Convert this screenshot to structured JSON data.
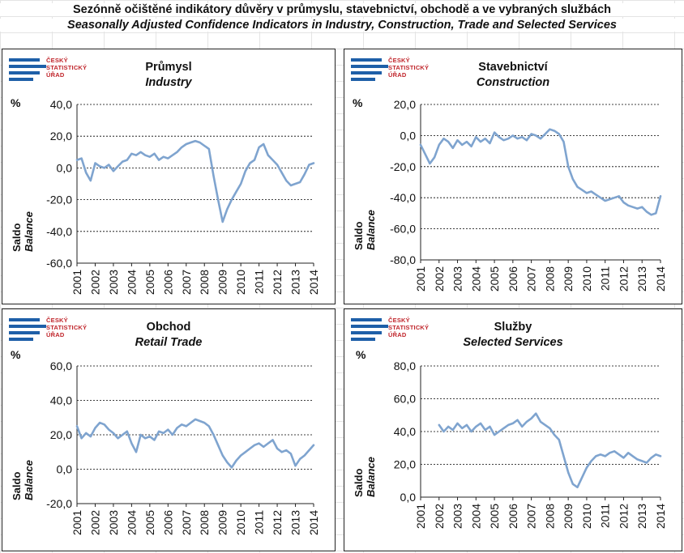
{
  "page": {
    "title_cz": "Sezónně očištěné indikátory důvěry v průmyslu, stavebnictví, obchodě a ve vybraných službách",
    "title_en": "Seasonally Adjusted Confidence Indicators in Industry, Construction, Trade and Selected Services"
  },
  "logo": {
    "line1": "ČESKÝ",
    "line2": "STATISTICKÝ",
    "line3": "ÚŘAD"
  },
  "colors": {
    "line": "#7fa4cf",
    "axis": "#222222",
    "grid": "#000000"
  },
  "chart_data": [
    {
      "type": "line",
      "title": "Průmysl",
      "subtitle": "Industry",
      "unit": "%",
      "ylabel": "Saldo",
      "ylabel_en": "Balance",
      "ylim": [
        -60,
        40
      ],
      "yticks": [
        "-60,0",
        "-40,0",
        "-20,0",
        "0,0",
        "20,0",
        "40,0"
      ],
      "xticks": [
        "2001",
        "2002",
        "2003",
        "2004",
        "2005",
        "2006",
        "2007",
        "2008",
        "2009",
        "2010",
        "2011",
        "2012",
        "2013",
        "2014"
      ],
      "grid": "horizontal dashed",
      "series": [
        {
          "x": [
            2001.0,
            2001.25,
            2001.5,
            2001.75,
            2002.0,
            2002.25,
            2002.5,
            2002.75,
            2003.0,
            2003.25,
            2003.5,
            2003.75,
            2004.0,
            2004.25,
            2004.5,
            2004.75,
            2005.0,
            2005.25,
            2005.5,
            2005.75,
            2006.0,
            2006.25,
            2006.5,
            2006.75,
            2007.0,
            2007.25,
            2007.5,
            2007.75,
            2008.0,
            2008.25,
            2008.5,
            2008.75,
            2009.0,
            2009.25,
            2009.5,
            2009.75,
            2010.0,
            2010.25,
            2010.5,
            2010.75,
            2011.0,
            2011.25,
            2011.5,
            2011.75,
            2012.0,
            2012.25,
            2012.5,
            2012.75,
            2013.0,
            2013.25,
            2013.5,
            2013.75,
            2014.0
          ],
          "values": [
            5,
            6,
            -3,
            -8,
            3,
            1,
            0,
            2,
            -2,
            1,
            4,
            5,
            9,
            8,
            10,
            8,
            7,
            9,
            5,
            7,
            6,
            8,
            10,
            13,
            15,
            16,
            17,
            16,
            14,
            12,
            -5,
            -20,
            -34,
            -26,
            -20,
            -15,
            -10,
            -2,
            3,
            5,
            13,
            15,
            8,
            5,
            2,
            -3,
            -8,
            -11,
            -10,
            -9,
            -4,
            2,
            3
          ]
        }
      ]
    },
    {
      "type": "line",
      "title": "Stavebnictví",
      "subtitle": "Construction",
      "unit": "%",
      "ylabel": "Saldo",
      "ylabel_en": "Balance",
      "ylim": [
        -80,
        20
      ],
      "yticks": [
        "-80,0",
        "-60,0",
        "-40,0",
        "-20,0",
        "0,0",
        "20,0"
      ],
      "xticks": [
        "2001",
        "2002",
        "2003",
        "2004",
        "2005",
        "2006",
        "2007",
        "2008",
        "2009",
        "2010",
        "2011",
        "2012",
        "2013",
        "2014"
      ],
      "grid": "horizontal dashed",
      "series": [
        {
          "x": [
            2001.0,
            2001.25,
            2001.5,
            2001.75,
            2002.0,
            2002.25,
            2002.5,
            2002.75,
            2003.0,
            2003.25,
            2003.5,
            2003.75,
            2004.0,
            2004.25,
            2004.5,
            2004.75,
            2005.0,
            2005.25,
            2005.5,
            2005.75,
            2006.0,
            2006.25,
            2006.5,
            2006.75,
            2007.0,
            2007.25,
            2007.5,
            2007.75,
            2008.0,
            2008.25,
            2008.5,
            2008.75,
            2009.0,
            2009.25,
            2009.5,
            2009.75,
            2010.0,
            2010.25,
            2010.5,
            2010.75,
            2011.0,
            2011.25,
            2011.5,
            2011.75,
            2012.0,
            2012.25,
            2012.5,
            2012.75,
            2013.0,
            2013.25,
            2013.5,
            2013.75,
            2014.0
          ],
          "values": [
            -6,
            -12,
            -18,
            -14,
            -6,
            -2,
            -4,
            -8,
            -3,
            -6,
            -4,
            -7,
            -1,
            -4,
            -2,
            -5,
            2,
            -1,
            -3,
            -2,
            0,
            -2,
            -1,
            -3,
            1,
            0,
            -2,
            1,
            4,
            3,
            1,
            -4,
            -20,
            -28,
            -33,
            -35,
            -37,
            -36,
            -38,
            -40,
            -42,
            -41,
            -40,
            -39,
            -43,
            -45,
            -46,
            -47,
            -46,
            -49,
            -51,
            -50,
            -39
          ]
        }
      ]
    },
    {
      "type": "line",
      "title": "Obchod",
      "subtitle": "Retail Trade",
      "unit": "%",
      "ylabel": "Saldo",
      "ylabel_en": "Balance",
      "ylim": [
        -20,
        60
      ],
      "yticks": [
        "-20,0",
        "0,0",
        "20,0",
        "40,0",
        "60,0"
      ],
      "xticks": [
        "2001",
        "2002",
        "2003",
        "2004",
        "2005",
        "2006",
        "2007",
        "2008",
        "2009",
        "2010",
        "2011",
        "2012",
        "2013",
        "2014"
      ],
      "grid": "horizontal dashed",
      "series": [
        {
          "x": [
            2001.0,
            2001.25,
            2001.5,
            2001.75,
            2002.0,
            2002.25,
            2002.5,
            2002.75,
            2003.0,
            2003.25,
            2003.5,
            2003.75,
            2004.0,
            2004.25,
            2004.5,
            2004.75,
            2005.0,
            2005.25,
            2005.5,
            2005.75,
            2006.0,
            2006.25,
            2006.5,
            2006.75,
            2007.0,
            2007.25,
            2007.5,
            2007.75,
            2008.0,
            2008.25,
            2008.5,
            2008.75,
            2009.0,
            2009.25,
            2009.5,
            2009.75,
            2010.0,
            2010.25,
            2010.5,
            2010.75,
            2011.0,
            2011.25,
            2011.5,
            2011.75,
            2012.0,
            2012.25,
            2012.5,
            2012.75,
            2013.0,
            2013.25,
            2013.5,
            2013.75,
            2014.0
          ],
          "values": [
            25,
            18,
            21,
            19,
            24,
            27,
            26,
            23,
            21,
            18,
            20,
            22,
            15,
            10,
            20,
            18,
            19,
            17,
            22,
            21,
            23,
            20,
            24,
            26,
            25,
            27,
            29,
            28,
            27,
            25,
            20,
            14,
            8,
            4,
            1,
            5,
            8,
            10,
            12,
            14,
            15,
            13,
            15,
            17,
            12,
            10,
            11,
            9,
            2,
            6,
            8,
            11,
            14
          ]
        }
      ]
    },
    {
      "type": "line",
      "title": "Služby",
      "subtitle": "Selected Services",
      "unit": "%",
      "ylabel": "Saldo",
      "ylabel_en": "Balance",
      "ylim": [
        0,
        80
      ],
      "yticks": [
        "0,0",
        "20,0",
        "40,0",
        "60,0",
        "80,0"
      ],
      "xticks": [
        "2001",
        "2002",
        "2003",
        "2004",
        "2005",
        "2006",
        "2007",
        "2008",
        "2009",
        "2010",
        "2011",
        "2012",
        "2013",
        "2014"
      ],
      "grid": "horizontal dashed",
      "series": [
        {
          "x": [
            2002.0,
            2002.25,
            2002.5,
            2002.75,
            2003.0,
            2003.25,
            2003.5,
            2003.75,
            2004.0,
            2004.25,
            2004.5,
            2004.75,
            2005.0,
            2005.25,
            2005.5,
            2005.75,
            2006.0,
            2006.25,
            2006.5,
            2006.75,
            2007.0,
            2007.25,
            2007.5,
            2007.75,
            2008.0,
            2008.25,
            2008.5,
            2008.75,
            2009.0,
            2009.25,
            2009.5,
            2009.75,
            2010.0,
            2010.25,
            2010.5,
            2010.75,
            2011.0,
            2011.25,
            2011.5,
            2011.75,
            2012.0,
            2012.25,
            2012.5,
            2012.75,
            2013.0,
            2013.25,
            2013.5,
            2013.75,
            2014.0
          ],
          "values": [
            44,
            40,
            43,
            41,
            45,
            42,
            44,
            40,
            43,
            45,
            41,
            43,
            38,
            40,
            42,
            44,
            45,
            47,
            43,
            46,
            48,
            51,
            46,
            44,
            42,
            38,
            35,
            25,
            15,
            8,
            6,
            12,
            18,
            22,
            25,
            26,
            25,
            27,
            28,
            26,
            24,
            27,
            25,
            23,
            22,
            21,
            24,
            26,
            25
          ]
        }
      ]
    }
  ]
}
